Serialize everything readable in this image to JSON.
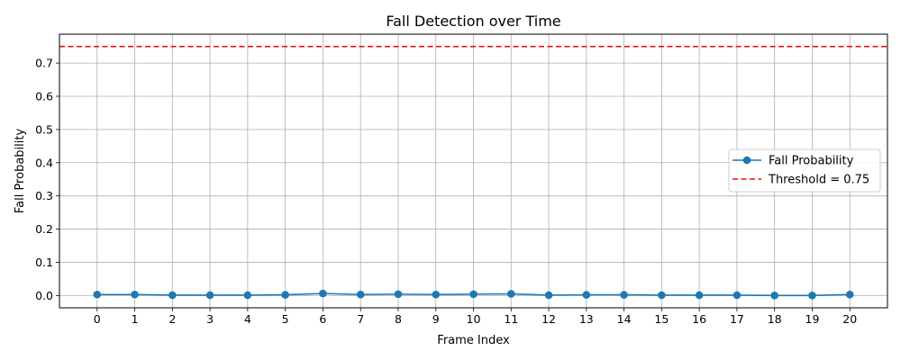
{
  "chart_data": {
    "type": "line",
    "title": "Fall Detection over Time",
    "xlabel": "Frame Index",
    "ylabel": "Fall Probability",
    "x": [
      0,
      1,
      2,
      3,
      4,
      5,
      6,
      7,
      8,
      9,
      10,
      11,
      12,
      13,
      14,
      15,
      16,
      17,
      18,
      19,
      20
    ],
    "xlim": [
      -1,
      21
    ],
    "ylim": [
      -0.037,
      0.787
    ],
    "yticks": [
      0.0,
      0.1,
      0.2,
      0.3,
      0.4,
      0.5,
      0.6,
      0.7
    ],
    "ytick_labels": [
      "0.0",
      "0.1",
      "0.2",
      "0.3",
      "0.4",
      "0.5",
      "0.6",
      "0.7"
    ],
    "xtick_labels": [
      "0",
      "1",
      "2",
      "3",
      "4",
      "5",
      "6",
      "7",
      "8",
      "9",
      "10",
      "11",
      "12",
      "13",
      "14",
      "15",
      "16",
      "17",
      "18",
      "19",
      "20"
    ],
    "grid": true,
    "legend_position": "center-right",
    "series": [
      {
        "name": "Fall Probability",
        "color": "#1f77b4",
        "marker": "circle",
        "values": [
          0.003,
          0.003,
          0.001,
          0.001,
          0.001,
          0.002,
          0.006,
          0.003,
          0.004,
          0.003,
          0.004,
          0.005,
          0.001,
          0.002,
          0.002,
          0.001,
          0.001,
          0.001,
          0.0,
          0.0,
          0.003
        ]
      }
    ],
    "threshold": {
      "name": "Threshold = 0.75",
      "value": 0.75,
      "color": "#e8120c",
      "style": "dashed"
    }
  }
}
